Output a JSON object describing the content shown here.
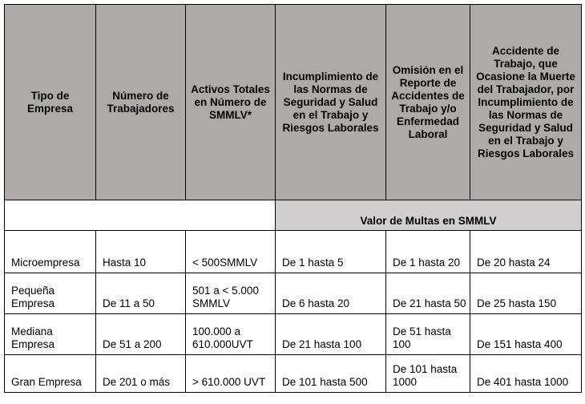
{
  "headers": [
    "Tipo de Empresa",
    "Número de Trabajadores",
    "Activos Totales en Número de SMMLV*",
    "Incumplimiento de las Normas de Seguridad y Salud en el Trabajo y Riesgos Laborales",
    "Omisión en el Reporte de Accidentes de Trabajo y/o Enfermedad Laboral",
    "Accidente de Trabajo, que Ocasione la Muerte del Trabajador, por Incumplimiento de las Normas de Seguridad y Salud en el Trabajo y Riesgos Laborales"
  ],
  "band_label": "Valor de Multas en SMMLV",
  "rows": [
    [
      "Microempresa",
      "Hasta 10",
      "< 500SMMLV",
      "De 1 hasta 5",
      "De 1 hasta 20",
      "De 20 hasta 24"
    ],
    [
      "Pequeña Empresa",
      "De 11 a 50",
      "501 a < 5.000 SMMLV",
      "De 6 hasta 20",
      "De 21 hasta 50",
      "De 25 hasta 150"
    ],
    [
      "Mediana Empresa",
      "De 51 a 200",
      "100.000 a 610.000UVT",
      "De 21 hasta 100",
      "De 51 hasta 100",
      "De 151 hasta 400"
    ],
    [
      "Gran Empresa",
      "De 201 o más",
      "> 610.000 UVT",
      "De 101 hasta 500",
      "De 101 hasta 1000",
      "De 401 hasta 1000"
    ]
  ],
  "colors": {
    "header_bg": "#aeaaa9",
    "band_bg": "#d0cece"
  }
}
